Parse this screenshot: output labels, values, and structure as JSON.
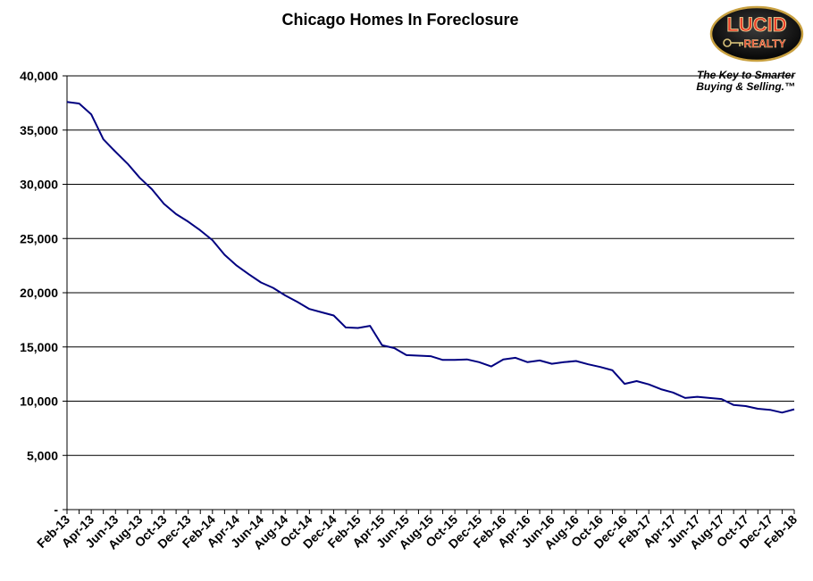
{
  "chart_data": {
    "type": "line",
    "title": "Chicago Homes In Foreclosure",
    "xlabel": "",
    "ylabel": "",
    "ylim": [
      0,
      40000
    ],
    "yticks": [
      0,
      5000,
      10000,
      15000,
      20000,
      25000,
      30000,
      35000,
      40000
    ],
    "ytick_labels": [
      "-",
      "5,000",
      "10,000",
      "15,000",
      "20,000",
      "25,000",
      "30,000",
      "35,000",
      "40,000"
    ],
    "x_tick_labels": [
      "Feb-13",
      "Apr-13",
      "Jun-13",
      "Aug-13",
      "Oct-13",
      "Dec-13",
      "Feb-14",
      "Apr-14",
      "Jun-14",
      "Aug-14",
      "Oct-14",
      "Dec-14",
      "Feb-15",
      "Apr-15",
      "Jun-15",
      "Aug-15",
      "Oct-15",
      "Dec-15",
      "Feb-16",
      "Apr-16",
      "Jun-16",
      "Aug-16",
      "Oct-16",
      "Dec-16",
      "Feb-17",
      "Apr-17",
      "Jun-17",
      "Aug-17",
      "Oct-17",
      "Dec-17",
      "Feb-18"
    ],
    "x": [
      "Feb-13",
      "Mar-13",
      "Apr-13",
      "May-13",
      "Jun-13",
      "Jul-13",
      "Aug-13",
      "Sep-13",
      "Oct-13",
      "Nov-13",
      "Dec-13",
      "Jan-14",
      "Feb-14",
      "Mar-14",
      "Apr-14",
      "May-14",
      "Jun-14",
      "Jul-14",
      "Aug-14",
      "Sep-14",
      "Oct-14",
      "Nov-14",
      "Dec-14",
      "Jan-15",
      "Feb-15",
      "Mar-15",
      "Apr-15",
      "May-15",
      "Jun-15",
      "Jul-15",
      "Aug-15",
      "Sep-15",
      "Oct-15",
      "Nov-15",
      "Dec-15",
      "Jan-16",
      "Feb-16",
      "Mar-16",
      "Apr-16",
      "May-16",
      "Jun-16",
      "Jul-16",
      "Aug-16",
      "Sep-16",
      "Oct-16",
      "Nov-16",
      "Dec-16",
      "Jan-17",
      "Feb-17",
      "Mar-17",
      "Apr-17",
      "May-17",
      "Jun-17",
      "Jul-17",
      "Aug-17",
      "Sep-17",
      "Oct-17",
      "Nov-17",
      "Dec-17",
      "Jan-18",
      "Feb-18"
    ],
    "series": [
      {
        "color": "#000080",
        "values": [
          37600,
          37450,
          36450,
          34150,
          33000,
          31900,
          30600,
          29550,
          28200,
          27250,
          26550,
          25750,
          24850,
          23500,
          22500,
          21700,
          20950,
          20450,
          19750,
          19150,
          18500,
          18200,
          17900,
          16800,
          16750,
          16950,
          15150,
          14900,
          14250,
          14200,
          14150,
          13800,
          13800,
          13850,
          13600,
          13200,
          13850,
          14000,
          13600,
          13750,
          13450,
          13600,
          13700,
          13400,
          13150,
          12850,
          11600,
          11850,
          11550,
          11100,
          10800,
          10300,
          10400,
          10300,
          10200,
          9650,
          9550,
          9300,
          9200,
          8950,
          9250
        ]
      }
    ],
    "grid": true
  },
  "logo": {
    "word_top": "LUCID",
    "word_bottom": "REALTY",
    "tagline_line1": "The Key to Smarter",
    "tagline_line2": "Buying & Selling.™"
  }
}
